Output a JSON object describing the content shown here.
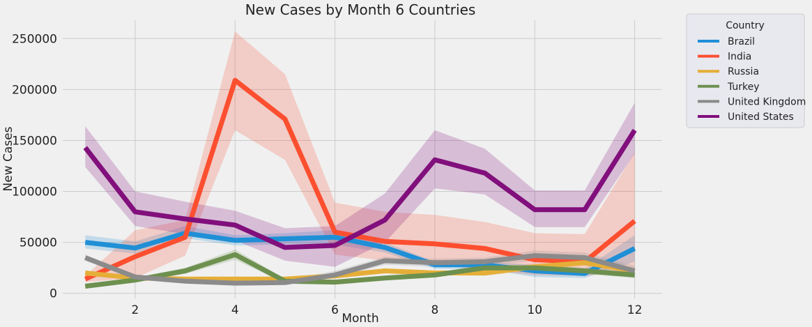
{
  "chart_data": {
    "type": "line",
    "title": "New Cases by Month 6 Countries",
    "xlabel": "Month",
    "ylabel": "New Cases",
    "xlim": [
      0.55,
      12.55
    ],
    "ylim": [
      -5000,
      268000
    ],
    "x_ticks": [
      2,
      4,
      6,
      8,
      10,
      12
    ],
    "y_ticks": [
      0,
      50000,
      100000,
      150000,
      200000,
      250000
    ],
    "grid": true,
    "legend": {
      "title": "Country",
      "placement": "outside-top-right"
    },
    "x": [
      1,
      2,
      3,
      4,
      5,
      6,
      7,
      8,
      9,
      10,
      11,
      12
    ],
    "series": [
      {
        "name": "Brazil",
        "color": "#1f8fd6",
        "values": [
          50000,
          44500,
          59000,
          52000,
          53500,
          55000,
          45000,
          28000,
          28000,
          22000,
          19500,
          44000
        ],
        "lower": [
          44000,
          39000,
          54000,
          47000,
          48000,
          48000,
          40000,
          24000,
          24000,
          16000,
          15000,
          31000
        ],
        "upper": [
          57000,
          51000,
          66000,
          57000,
          59000,
          62000,
          50000,
          31000,
          31000,
          28000,
          24000,
          57000
        ]
      },
      {
        "name": "India",
        "color": "#fc4f30",
        "values": [
          14000,
          36000,
          55000,
          209000,
          171000,
          60000,
          51000,
          48500,
          44000,
          33000,
          31000,
          71000
        ],
        "lower": [
          11000,
          15000,
          37000,
          160000,
          131000,
          38000,
          32000,
          28000,
          23000,
          18000,
          17000,
          22000
        ],
        "upper": [
          17000,
          62000,
          72000,
          257000,
          215000,
          89000,
          80000,
          77000,
          70000,
          59000,
          58000,
          138000
        ]
      },
      {
        "name": "Russia",
        "color": "#e5ae38",
        "values": [
          20000,
          15000,
          14000,
          14000,
          14000,
          17000,
          22000,
          20000,
          20000,
          26000,
          30000,
          22000
        ],
        "lower": [
          17500,
          13000,
          12000,
          12000,
          12000,
          15000,
          20000,
          18000,
          17000,
          23000,
          27000,
          19000
        ],
        "upper": [
          22500,
          17000,
          16000,
          16000,
          16000,
          19000,
          24000,
          22000,
          23000,
          29000,
          33000,
          25000
        ]
      },
      {
        "name": "Turkey",
        "color": "#6d904f",
        "values": [
          7000,
          13000,
          22000,
          38000,
          12000,
          11000,
          15000,
          18000,
          25000,
          25000,
          22000,
          18000
        ],
        "lower": [
          5500,
          11000,
          19000,
          33000,
          10000,
          9000,
          13000,
          16000,
          22000,
          22000,
          19000,
          15000
        ],
        "upper": [
          8500,
          15000,
          25000,
          43000,
          14000,
          13000,
          17000,
          20000,
          28000,
          28000,
          25000,
          21000
        ]
      },
      {
        "name": "United Kingdom",
        "color": "#8b8b8b",
        "values": [
          35000,
          16000,
          12000,
          10000,
          10500,
          18000,
          32000,
          30000,
          31000,
          37000,
          35000,
          22000
        ],
        "lower": [
          32000,
          14000,
          10000,
          8000,
          8500,
          15000,
          28000,
          26000,
          27000,
          32000,
          31000,
          17000
        ],
        "upper": [
          38000,
          18000,
          14000,
          12000,
          12500,
          22000,
          36000,
          34000,
          35000,
          42000,
          40000,
          27000
        ]
      },
      {
        "name": "United States",
        "color": "#810f7c",
        "values": [
          143000,
          80000,
          73000,
          67000,
          45000,
          47000,
          72000,
          131000,
          118000,
          82000,
          82000,
          160000
        ],
        "lower": [
          124000,
          66000,
          58000,
          52000,
          32000,
          26000,
          50000,
          103000,
          97000,
          65000,
          65000,
          137000
        ],
        "upper": [
          164000,
          100000,
          90000,
          81000,
          64000,
          66000,
          98000,
          160000,
          142000,
          101000,
          101000,
          187000
        ]
      }
    ]
  }
}
